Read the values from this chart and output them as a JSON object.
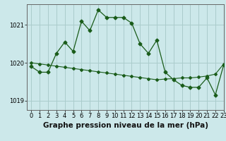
{
  "title": "Graphe pression niveau de la mer (hPa)",
  "background_color": "#cce8ea",
  "grid_color": "#aacccc",
  "line_color": "#1a5c1a",
  "xlim": [
    -0.5,
    23
  ],
  "ylim": [
    1018.75,
    1021.55
  ],
  "yticks": [
    1019,
    1020,
    1021
  ],
  "xticks": [
    0,
    1,
    2,
    3,
    4,
    5,
    6,
    7,
    8,
    9,
    10,
    11,
    12,
    13,
    14,
    15,
    16,
    17,
    18,
    19,
    20,
    21,
    22,
    23
  ],
  "series1_x": [
    0,
    1,
    2,
    3,
    4,
    5,
    6,
    7,
    8,
    9,
    10,
    11,
    12,
    13,
    14,
    15,
    16,
    17,
    18,
    19,
    20,
    21,
    22,
    23
  ],
  "series1_y": [
    1019.9,
    1019.75,
    1019.75,
    1020.25,
    1020.55,
    1020.3,
    1021.1,
    1020.85,
    1021.4,
    1021.2,
    1021.2,
    1021.2,
    1021.05,
    1020.5,
    1020.25,
    1020.6,
    1019.75,
    1019.55,
    1019.4,
    1019.35,
    1019.35,
    1019.6,
    1019.15,
    1019.95
  ],
  "series2_x": [
    0,
    1,
    2,
    3,
    4,
    5,
    6,
    7,
    8,
    9,
    10,
    11,
    12,
    13,
    14,
    15,
    16,
    17,
    18,
    19,
    20,
    21,
    22,
    23
  ],
  "series2_y": [
    1020.0,
    1019.97,
    1019.94,
    1019.91,
    1019.88,
    1019.85,
    1019.82,
    1019.79,
    1019.76,
    1019.73,
    1019.7,
    1019.67,
    1019.64,
    1019.61,
    1019.58,
    1019.55,
    1019.57,
    1019.58,
    1019.6,
    1019.6,
    1019.62,
    1019.65,
    1019.7,
    1019.97
  ],
  "title_fontsize": 7.5,
  "tick_fontsize": 6.0
}
